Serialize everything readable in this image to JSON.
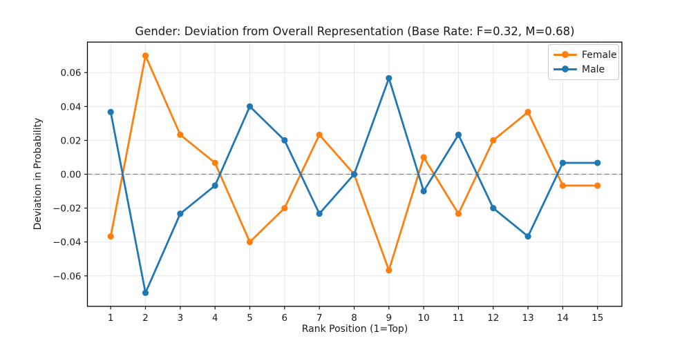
{
  "chart_data": {
    "type": "line",
    "title": "Gender: Deviation from Overall Representation (Base Rate: F=0.32, M=0.68)",
    "xlabel": "Rank Position (1=Top)",
    "ylabel": "Deviation in Probability",
    "base_rate_female": 0.32,
    "base_rate_male": 0.68,
    "categories": [
      1,
      2,
      3,
      4,
      5,
      6,
      7,
      8,
      9,
      10,
      11,
      12,
      13,
      14,
      15
    ],
    "xtick_labels": [
      "1",
      "2",
      "3",
      "4",
      "5",
      "6",
      "7",
      "8",
      "9",
      "10",
      "11",
      "12",
      "13",
      "14",
      "15"
    ],
    "series": [
      {
        "name": "Female",
        "color": "#ff7f0e",
        "values": [
          -0.0367,
          0.07,
          0.0233,
          0.0067,
          -0.04,
          -0.02,
          0.0233,
          0.0,
          -0.0567,
          0.01,
          -0.0233,
          0.02,
          0.0367,
          -0.0067,
          -0.0067
        ]
      },
      {
        "name": "Male",
        "color": "#1f77b4",
        "values": [
          0.0367,
          -0.07,
          -0.0233,
          -0.0067,
          0.04,
          0.02,
          -0.0233,
          0.0,
          0.0567,
          -0.01,
          0.0233,
          -0.02,
          -0.0367,
          0.0067,
          0.0067
        ]
      }
    ],
    "xlim": [
      0.33,
      15.7
    ],
    "ylim": [
      -0.078,
      0.078
    ],
    "yticks": [
      0.06,
      0.04,
      0.02,
      0.0,
      -0.02,
      -0.04,
      -0.06
    ],
    "ytick_labels": [
      "0.06",
      "0.04",
      "0.02",
      "0.00",
      "−0.02",
      "−0.04",
      "−0.06"
    ],
    "grid": true,
    "grid_color": "#e6e6e6",
    "spine_color": "#000000",
    "tick_color": "#000000",
    "zero_line": {
      "color": "#808080",
      "style": "dashed"
    },
    "marker": "circle",
    "legend_position": "upper right"
  }
}
